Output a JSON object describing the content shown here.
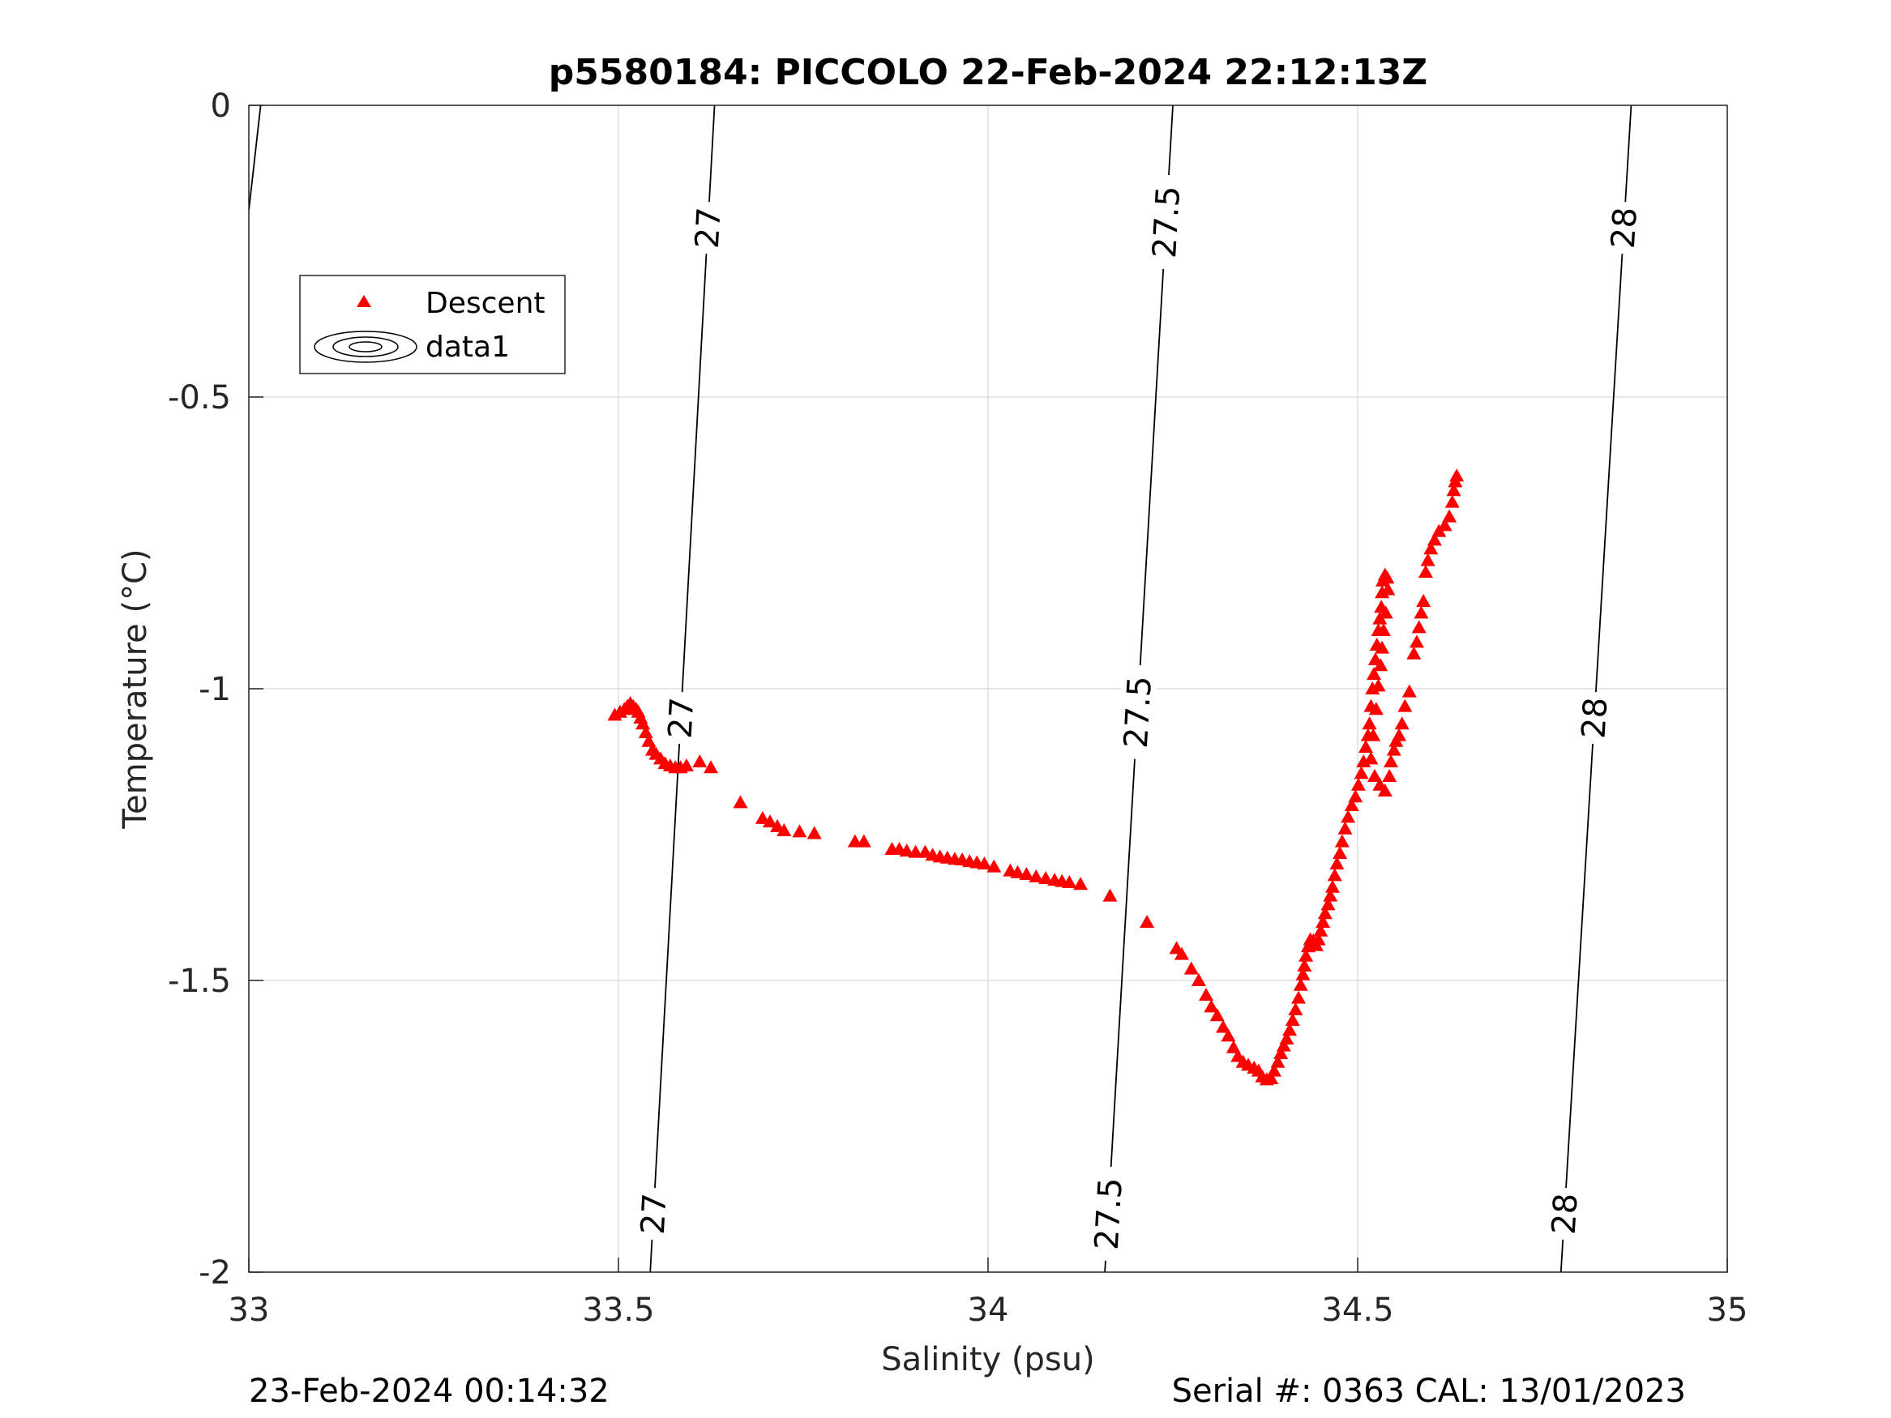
{
  "chart_data": {
    "type": "scatter",
    "title": "p5580184: PICCOLO 22-Feb-2024 22:12:13Z",
    "xlabel": "Salinity (psu)",
    "ylabel": "Temperature (°C)",
    "xlim": [
      33,
      35
    ],
    "ylim": [
      -2,
      0
    ],
    "grid": true,
    "legend_placement": "top-left",
    "x_ticks": [
      "33",
      "33.5",
      "34",
      "34.5",
      "35"
    ],
    "y_ticks": [
      "0",
      "-0.5",
      "-1",
      "-1.5",
      "-2"
    ],
    "legend": [
      {
        "label": "Descent",
        "kind": "marker"
      },
      {
        "label": "data1",
        "kind": "contour"
      }
    ],
    "series": [
      {
        "name": "Descent",
        "marker": "triangle",
        "color": "#ff0000",
        "points": [
          [
            33.495,
            -1.045
          ],
          [
            33.502,
            -1.04
          ],
          [
            33.508,
            -1.035
          ],
          [
            33.512,
            -1.03
          ],
          [
            33.516,
            -1.025
          ],
          [
            33.52,
            -1.03
          ],
          [
            33.524,
            -1.035
          ],
          [
            33.527,
            -1.04
          ],
          [
            33.53,
            -1.05
          ],
          [
            33.533,
            -1.06
          ],
          [
            33.537,
            -1.075
          ],
          [
            33.541,
            -1.09
          ],
          [
            33.546,
            -1.105
          ],
          [
            33.551,
            -1.112
          ],
          [
            33.557,
            -1.12
          ],
          [
            33.563,
            -1.128
          ],
          [
            33.57,
            -1.132
          ],
          [
            33.577,
            -1.135
          ],
          [
            33.584,
            -1.135
          ],
          [
            33.592,
            -1.132
          ],
          [
            33.61,
            -1.125
          ],
          [
            33.625,
            -1.135
          ],
          [
            33.665,
            -1.195
          ],
          [
            33.695,
            -1.222
          ],
          [
            33.705,
            -1.228
          ],
          [
            33.715,
            -1.236
          ],
          [
            33.724,
            -1.243
          ],
          [
            33.745,
            -1.245
          ],
          [
            33.765,
            -1.248
          ],
          [
            33.82,
            -1.262
          ],
          [
            33.832,
            -1.262
          ],
          [
            33.87,
            -1.275
          ],
          [
            33.88,
            -1.275
          ],
          [
            33.89,
            -1.278
          ],
          [
            33.902,
            -1.28
          ],
          [
            33.915,
            -1.28
          ],
          [
            33.925,
            -1.285
          ],
          [
            33.935,
            -1.288
          ],
          [
            33.945,
            -1.29
          ],
          [
            33.955,
            -1.292
          ],
          [
            33.965,
            -1.293
          ],
          [
            33.975,
            -1.296
          ],
          [
            33.985,
            -1.298
          ],
          [
            33.995,
            -1.3
          ],
          [
            34.008,
            -1.305
          ],
          [
            34.03,
            -1.312
          ],
          [
            34.04,
            -1.315
          ],
          [
            34.052,
            -1.318
          ],
          [
            34.065,
            -1.322
          ],
          [
            34.078,
            -1.325
          ],
          [
            34.09,
            -1.328
          ],
          [
            34.1,
            -1.33
          ],
          [
            34.11,
            -1.332
          ],
          [
            34.125,
            -1.335
          ],
          [
            34.165,
            -1.355
          ],
          [
            34.215,
            -1.4
          ],
          [
            34.255,
            -1.445
          ],
          [
            34.262,
            -1.455
          ],
          [
            34.275,
            -1.48
          ],
          [
            34.285,
            -1.5
          ],
          [
            34.295,
            -1.525
          ],
          [
            34.302,
            -1.545
          ],
          [
            34.31,
            -1.56
          ],
          [
            34.318,
            -1.58
          ],
          [
            34.325,
            -1.595
          ],
          [
            34.332,
            -1.615
          ],
          [
            34.338,
            -1.63
          ],
          [
            34.345,
            -1.64
          ],
          [
            34.352,
            -1.645
          ],
          [
            34.36,
            -1.65
          ],
          [
            34.366,
            -1.655
          ],
          [
            34.371,
            -1.665
          ],
          [
            34.377,
            -1.67
          ],
          [
            34.383,
            -1.668
          ],
          [
            34.387,
            -1.655
          ],
          [
            34.392,
            -1.64
          ],
          [
            34.396,
            -1.625
          ],
          [
            34.4,
            -1.612
          ],
          [
            34.404,
            -1.6
          ],
          [
            34.408,
            -1.585
          ],
          [
            34.412,
            -1.568
          ],
          [
            34.416,
            -1.55
          ],
          [
            34.42,
            -1.53
          ],
          [
            34.423,
            -1.508
          ],
          [
            34.426,
            -1.49
          ],
          [
            34.428,
            -1.475
          ],
          [
            34.43,
            -1.458
          ],
          [
            34.433,
            -1.442
          ],
          [
            34.436,
            -1.43
          ],
          [
            34.44,
            -1.432
          ],
          [
            34.444,
            -1.44
          ],
          [
            34.447,
            -1.43
          ],
          [
            34.45,
            -1.415
          ],
          [
            34.453,
            -1.4
          ],
          [
            34.456,
            -1.385
          ],
          [
            34.46,
            -1.37
          ],
          [
            34.463,
            -1.355
          ],
          [
            34.466,
            -1.34
          ],
          [
            34.469,
            -1.32
          ],
          [
            34.472,
            -1.3
          ],
          [
            34.476,
            -1.282
          ],
          [
            34.479,
            -1.262
          ],
          [
            34.483,
            -1.24
          ],
          [
            34.487,
            -1.22
          ],
          [
            34.492,
            -1.2
          ],
          [
            34.497,
            -1.185
          ],
          [
            34.501,
            -1.165
          ],
          [
            34.505,
            -1.145
          ],
          [
            34.508,
            -1.125
          ],
          [
            34.511,
            -1.1
          ],
          [
            34.514,
            -1.08
          ],
          [
            34.516,
            -1.06
          ],
          [
            34.518,
            -1.03
          ],
          [
            34.52,
            -1.0
          ],
          [
            34.522,
            -0.975
          ],
          [
            34.524,
            -0.95
          ],
          [
            34.526,
            -0.925
          ],
          [
            34.528,
            -0.9
          ],
          [
            34.53,
            -0.88
          ],
          [
            34.532,
            -0.86
          ],
          [
            34.533,
            -0.835
          ],
          [
            34.534,
            -0.815
          ],
          [
            34.537,
            -0.805
          ],
          [
            34.54,
            -0.81
          ],
          [
            34.541,
            -0.83
          ],
          [
            34.538,
            -0.87
          ],
          [
            34.535,
            -0.9
          ],
          [
            34.533,
            -0.93
          ],
          [
            34.531,
            -0.96
          ],
          [
            34.528,
            -0.995
          ],
          [
            34.525,
            -1.035
          ],
          [
            34.521,
            -1.08
          ],
          [
            34.518,
            -1.12
          ],
          [
            34.523,
            -1.15
          ],
          [
            34.53,
            -1.165
          ],
          [
            34.537,
            -1.175
          ],
          [
            34.543,
            -1.15
          ],
          [
            34.545,
            -1.125
          ],
          [
            34.549,
            -1.105
          ],
          [
            34.552,
            -1.09
          ],
          [
            34.556,
            -1.08
          ],
          [
            34.56,
            -1.06
          ],
          [
            34.564,
            -1.03
          ],
          [
            34.57,
            -1.005
          ],
          [
            34.576,
            -0.94
          ],
          [
            34.58,
            -0.92
          ],
          [
            34.583,
            -0.895
          ],
          [
            34.586,
            -0.87
          ],
          [
            34.589,
            -0.85
          ],
          [
            34.592,
            -0.8
          ],
          [
            34.595,
            -0.78
          ],
          [
            34.599,
            -0.76
          ],
          [
            34.604,
            -0.745
          ],
          [
            34.61,
            -0.73
          ],
          [
            34.618,
            -0.72
          ],
          [
            34.624,
            -0.705
          ],
          [
            34.628,
            -0.68
          ],
          [
            34.63,
            -0.66
          ],
          [
            34.632,
            -0.645
          ],
          [
            34.634,
            -0.635
          ]
        ]
      }
    ],
    "contours": [
      {
        "label": "27",
        "points": [
          [
            33.63,
            0
          ],
          [
            33.543,
            -2
          ]
        ],
        "label_y": [
          -0.21,
          -1.05,
          -1.9
        ]
      },
      {
        "label": "27.5",
        "points": [
          [
            34.25,
            0
          ],
          [
            34.158,
            -2
          ]
        ],
        "label_y": [
          -0.2,
          -1.04,
          -1.9
        ]
      },
      {
        "label": "28",
        "points": [
          [
            34.87,
            0
          ],
          [
            34.775,
            -2
          ]
        ],
        "label_y": [
          -0.21,
          -1.05,
          -1.9
        ]
      },
      {
        "label": "",
        "points": [
          [
            33.016,
            0
          ],
          [
            33.0,
            -0.18
          ]
        ],
        "label_y": []
      }
    ]
  },
  "footer": {
    "timestamp": "23-Feb-2024 00:14:32",
    "serial_cal": "Serial #: 0363  CAL: 13/01/2023"
  },
  "colors": {
    "marker": "#ff0000",
    "grid": "#dfdfdf",
    "axis": "#262626",
    "contour": "#000000"
  }
}
